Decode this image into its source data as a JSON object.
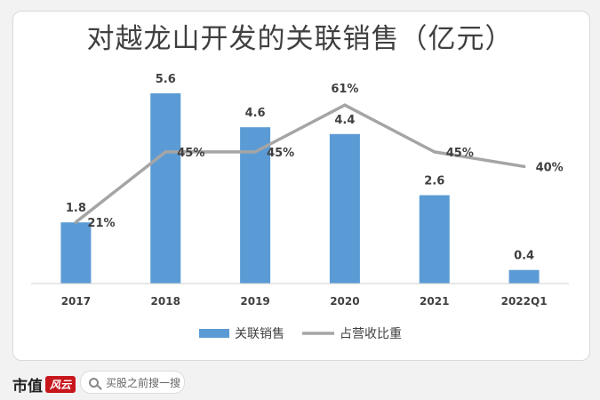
{
  "chart_data": {
    "type": "bar",
    "title": "对越龙山开发的关联销售（亿元）",
    "categories": [
      "2017",
      "2018",
      "2019",
      "2020",
      "2021",
      "2022Q1"
    ],
    "series": [
      {
        "name": "关联销售",
        "type": "bar",
        "values": [
          1.8,
          5.6,
          4.6,
          4.4,
          2.6,
          0.4
        ],
        "labels": [
          "1.8",
          "5.6",
          "4.6",
          "4.4",
          "2.6",
          "0.4"
        ],
        "color": "#5b9bd5"
      },
      {
        "name": "占营收比重",
        "type": "line",
        "values": [
          21,
          45,
          45,
          61,
          45,
          40
        ],
        "labels": [
          "21%",
          "45%",
          "45%",
          "61%",
          "45%",
          "40%"
        ],
        "color": "#a5a5a5"
      }
    ],
    "ylim": [
      0,
      6.2
    ],
    "y2lim": [
      0,
      72
    ],
    "legend": "bottom",
    "grid": false
  },
  "footer": {
    "brand": "市值",
    "brand_badge": "风云",
    "search_icon": "search-icon",
    "search_text": "买股之前搜一搜"
  }
}
